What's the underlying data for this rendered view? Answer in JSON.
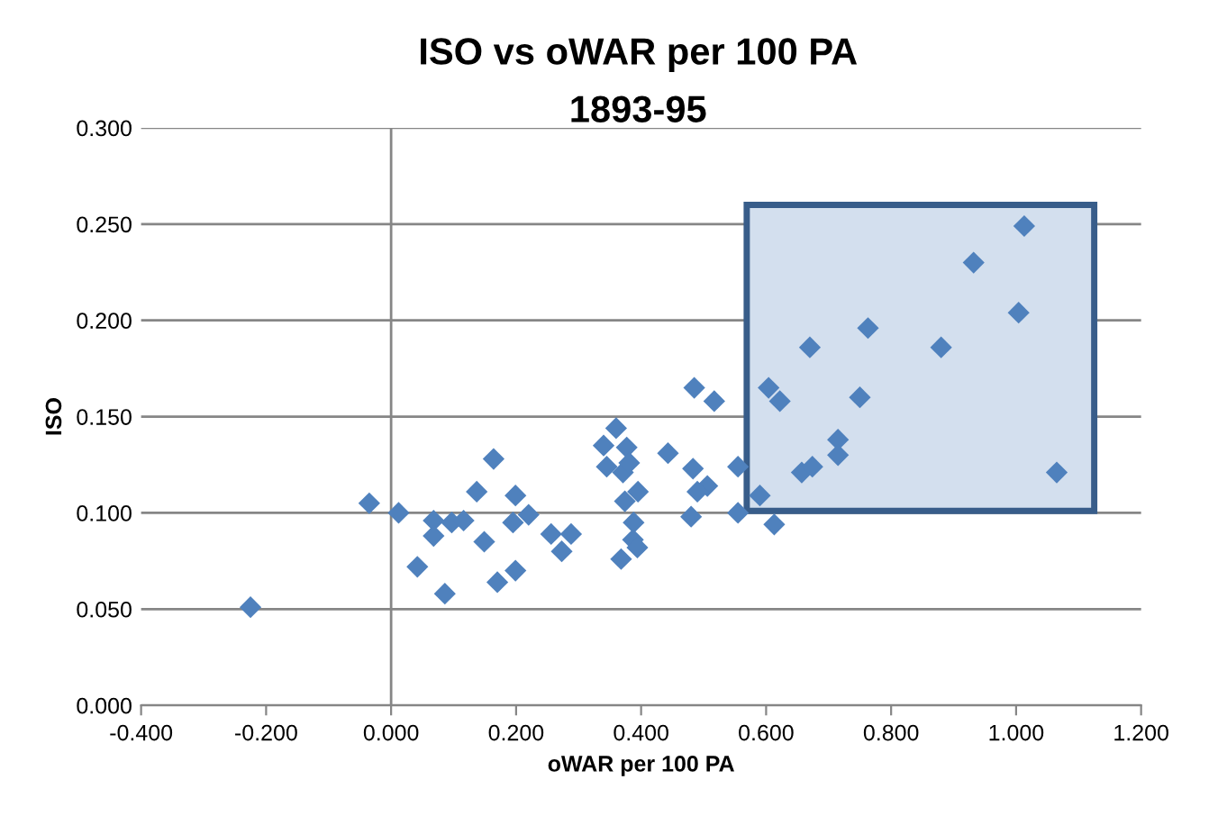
{
  "chart_data": {
    "type": "scatter",
    "title": "ISO vs oWAR per 100 PA",
    "subtitle": "1893-95",
    "xlabel": "oWAR per 100 PA",
    "ylabel": "ISO",
    "x": [
      -0.225,
      -0.035,
      0.012,
      0.042,
      0.068,
      0.068,
      0.086,
      0.097,
      0.116,
      0.137,
      0.149,
      0.164,
      0.17,
      0.199,
      0.195,
      0.199,
      0.22,
      0.256,
      0.288,
      0.273,
      0.34,
      0.36,
      0.345,
      0.377,
      0.371,
      0.381,
      0.395,
      0.374,
      0.388,
      0.387,
      0.394,
      0.368,
      0.443,
      0.485,
      0.517,
      0.483,
      0.506,
      0.49,
      0.48,
      0.555,
      0.555,
      0.59,
      0.613,
      0.604,
      0.622,
      0.657,
      0.674,
      0.715,
      0.715,
      0.67,
      0.75,
      0.763,
      0.88,
      0.932,
      1.013,
      1.004,
      1.065
    ],
    "series": [
      {
        "color": "#4f81bd",
        "values": [
          0.051,
          0.105,
          0.1,
          0.072,
          0.096,
          0.088,
          0.058,
          0.095,
          0.096,
          0.111,
          0.085,
          0.128,
          0.064,
          0.109,
          0.095,
          0.07,
          0.099,
          0.089,
          0.089,
          0.08,
          0.135,
          0.144,
          0.124,
          0.134,
          0.121,
          0.126,
          0.111,
          0.106,
          0.095,
          0.086,
          0.082,
          0.076,
          0.131,
          0.165,
          0.158,
          0.123,
          0.114,
          0.111,
          0.098,
          0.124,
          0.1,
          0.109,
          0.094,
          0.165,
          0.158,
          0.121,
          0.124,
          0.138,
          0.13,
          0.186,
          0.16,
          0.196,
          0.186,
          0.23,
          0.249,
          0.204,
          0.121
        ]
      }
    ],
    "marker": "diamond",
    "grid": "y",
    "xlim": [
      -0.4,
      1.2
    ],
    "xticks": [
      {
        "value": -0.4,
        "label": "-0.400"
      },
      {
        "value": -0.2,
        "label": "-0.200"
      },
      {
        "value": 0,
        "label": "0.000"
      },
      {
        "value": 0.2,
        "label": "0.200"
      },
      {
        "value": 0.4,
        "label": "0.400"
      },
      {
        "value": 0.6,
        "label": "0.600"
      },
      {
        "value": 0.8,
        "label": "0.800"
      },
      {
        "value": 1.0,
        "label": "1.000"
      },
      {
        "value": 1.2,
        "label": "1.200"
      }
    ],
    "ylim": [
      0,
      0.3
    ],
    "yticks": [
      {
        "value": 0,
        "label": "0.000"
      },
      {
        "value": 0.05,
        "label": "0.050"
      },
      {
        "value": 0.1,
        "label": "0.100"
      },
      {
        "value": 0.15,
        "label": "0.150"
      },
      {
        "value": 0.2,
        "label": "0.200"
      },
      {
        "value": 0.25,
        "label": "0.250"
      },
      {
        "value": 0.3,
        "label": "0.300"
      }
    ],
    "ref_lines": [
      {
        "axis": "x",
        "value": 0,
        "color": "#868686"
      }
    ]
  }
}
